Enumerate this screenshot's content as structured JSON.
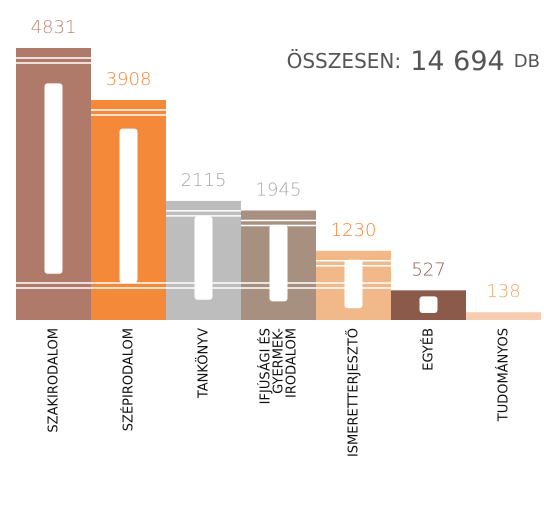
{
  "chart_data": {
    "type": "bar",
    "annotation": {
      "prefix": "ÖSSZESEN:",
      "value": "14 694",
      "unit": "DB"
    },
    "categories": [
      "SZAKIRODALOM",
      "SZÉPIRODALOM",
      "TANKÖNYV",
      "IFJÚSÁGI ÉS\nGYERMEK-\nIRODALOM",
      "ISMERETTERJESZTŐ",
      "EGYÉB",
      "TUDOMÁNYOS"
    ],
    "values": [
      4831,
      3908,
      2115,
      1945,
      1230,
      527,
      138
    ],
    "colors": [
      "#b07a6a",
      "#f5893a",
      "#bdbdbd",
      "#a89080",
      "#f1b88a",
      "#8b5a4a",
      "#f6cdb0"
    ],
    "label_colors": [
      "#c08878",
      "#f5893a",
      "#a8a8a8",
      "#a8a8a8",
      "#f5893a",
      "#8b5a4a",
      "#f1a86a"
    ],
    "ylim": [
      0,
      5000
    ]
  }
}
